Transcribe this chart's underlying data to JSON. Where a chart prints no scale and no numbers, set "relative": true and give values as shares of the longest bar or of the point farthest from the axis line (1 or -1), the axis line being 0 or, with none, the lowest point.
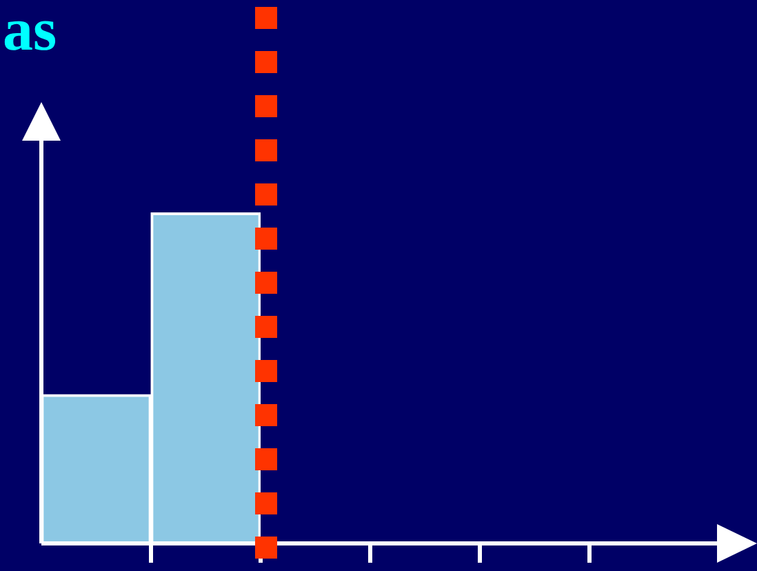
{
  "chart_data": {
    "type": "bar",
    "title": "as",
    "relative": true,
    "categories": [
      null,
      null
    ],
    "values": [
      0.45,
      1
    ],
    "color": "#8cc8e4",
    "legend": false,
    "tick_labels": false
  }
}
